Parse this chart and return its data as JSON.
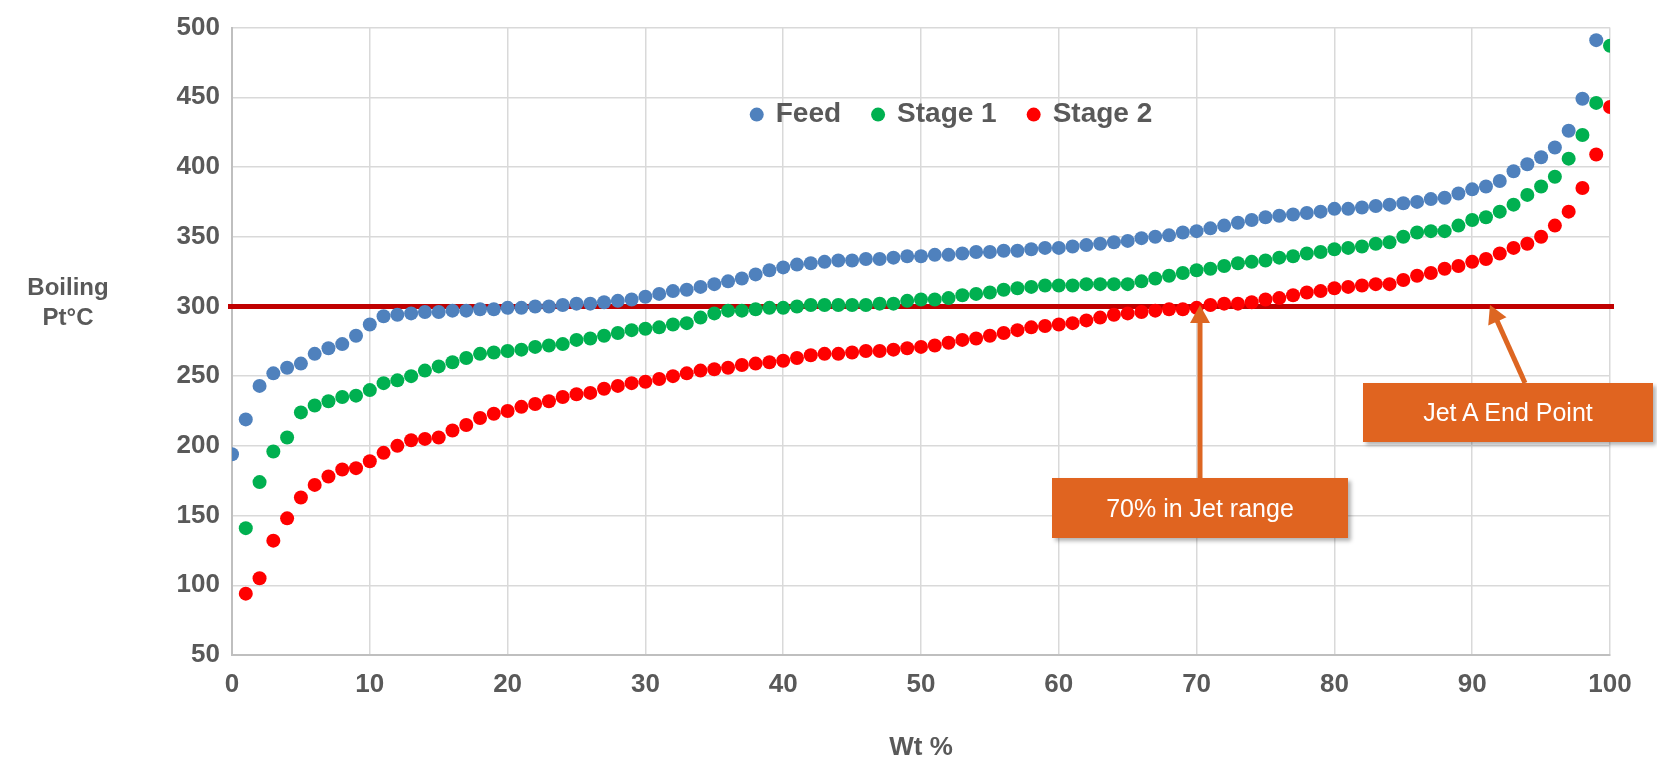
{
  "chart_data": {
    "type": "scatter",
    "xlabel": "Wt %",
    "ylabel": "Boiling Pt°C",
    "xlim": [
      0,
      100
    ],
    "xticks": [
      0,
      10,
      20,
      30,
      40,
      50,
      60,
      70,
      80,
      90,
      100
    ],
    "ylim": [
      50,
      500
    ],
    "yticks": [
      50,
      100,
      150,
      200,
      250,
      300,
      350,
      400,
      450,
      500
    ],
    "grid": true,
    "legend": "top",
    "marker": "circle",
    "series": [
      {
        "name": "Feed",
        "color": "#4f81bd",
        "x": [
          0,
          1,
          2,
          3,
          4,
          5,
          6,
          7,
          8,
          9,
          10,
          11,
          12,
          13,
          14,
          15,
          16,
          17,
          18,
          19,
          20,
          21,
          22,
          23,
          24,
          25,
          26,
          27,
          28,
          29,
          30,
          31,
          32,
          33,
          34,
          35,
          36,
          37,
          38,
          39,
          40,
          41,
          42,
          43,
          44,
          45,
          46,
          47,
          48,
          49,
          50,
          51,
          52,
          53,
          54,
          55,
          56,
          57,
          58,
          59,
          60,
          61,
          62,
          63,
          64,
          65,
          66,
          67,
          68,
          69,
          70,
          71,
          72,
          73,
          74,
          75,
          76,
          77,
          78,
          79,
          80,
          81,
          82,
          83,
          84,
          85,
          86,
          87,
          88,
          89,
          90,
          91,
          92,
          93,
          94,
          95,
          96,
          97,
          98,
          99
        ],
        "values": [
          194,
          219,
          243,
          252,
          256,
          259,
          266,
          270,
          273,
          279,
          287,
          293,
          294,
          295,
          296,
          296,
          297,
          297,
          298,
          298,
          299,
          299,
          300,
          300,
          301,
          302,
          302,
          303,
          304,
          305,
          307,
          309,
          311,
          312,
          314,
          316,
          318,
          320,
          323,
          326,
          328,
          330,
          331,
          332,
          333,
          333,
          334,
          334,
          335,
          336,
          336,
          337,
          337,
          338,
          339,
          339,
          340,
          340,
          341,
          342,
          342,
          343,
          344,
          345,
          346,
          347,
          349,
          350,
          351,
          353,
          354,
          356,
          358,
          360,
          362,
          364,
          365,
          366,
          367,
          368,
          370,
          370,
          371,
          372,
          373,
          374,
          375,
          377,
          378,
          381,
          384,
          386,
          390,
          397,
          402,
          407,
          414,
          426,
          449,
          491
        ]
      },
      {
        "name": "Stage 1",
        "color": "#00b050",
        "x": [
          1,
          2,
          3,
          4,
          5,
          6,
          7,
          8,
          9,
          10,
          11,
          12,
          13,
          14,
          15,
          16,
          17,
          18,
          19,
          20,
          21,
          22,
          23,
          24,
          25,
          26,
          27,
          28,
          29,
          30,
          31,
          32,
          33,
          34,
          35,
          36,
          37,
          38,
          39,
          40,
          41,
          42,
          43,
          44,
          45,
          46,
          47,
          48,
          49,
          50,
          51,
          52,
          53,
          54,
          55,
          56,
          57,
          58,
          59,
          60,
          61,
          62,
          63,
          64,
          65,
          66,
          67,
          68,
          69,
          70,
          71,
          72,
          73,
          74,
          75,
          76,
          77,
          78,
          79,
          80,
          81,
          82,
          83,
          84,
          85,
          86,
          87,
          88,
          89,
          90,
          91,
          92,
          93,
          94,
          95,
          96,
          97,
          98,
          99,
          100
        ],
        "values": [
          141,
          174,
          196,
          206,
          224,
          229,
          232,
          235,
          236,
          240,
          245,
          247,
          250,
          254,
          257,
          260,
          263,
          266,
          267,
          268,
          269,
          271,
          272,
          273,
          276,
          277,
          279,
          281,
          283,
          284,
          285,
          287,
          288,
          292,
          295,
          297,
          297,
          298,
          299,
          299,
          300,
          301,
          301,
          301,
          301,
          301,
          302,
          302,
          304,
          305,
          305,
          306,
          308,
          309,
          310,
          312,
          313,
          314,
          315,
          315,
          315,
          316,
          316,
          316,
          316,
          318,
          320,
          322,
          324,
          326,
          327,
          329,
          331,
          332,
          333,
          335,
          336,
          338,
          339,
          341,
          342,
          343,
          345,
          346,
          350,
          353,
          354,
          354,
          358,
          362,
          364,
          368,
          373,
          380,
          386,
          393,
          406,
          423,
          446,
          487
        ]
      },
      {
        "name": "Stage 2",
        "color": "#ff0000",
        "x": [
          1,
          2,
          3,
          4,
          5,
          6,
          7,
          8,
          9,
          10,
          11,
          12,
          13,
          14,
          15,
          16,
          17,
          18,
          19,
          20,
          21,
          22,
          23,
          24,
          25,
          26,
          27,
          28,
          29,
          30,
          31,
          32,
          33,
          34,
          35,
          36,
          37,
          38,
          39,
          40,
          41,
          42,
          43,
          44,
          45,
          46,
          47,
          48,
          49,
          50,
          51,
          52,
          53,
          54,
          55,
          56,
          57,
          58,
          59,
          60,
          61,
          62,
          63,
          64,
          65,
          66,
          67,
          68,
          69,
          70,
          71,
          72,
          73,
          74,
          75,
          76,
          77,
          78,
          79,
          80,
          81,
          82,
          83,
          84,
          85,
          86,
          87,
          88,
          89,
          90,
          91,
          92,
          93,
          94,
          95,
          96,
          97,
          98,
          99,
          100
        ],
        "values": [
          94,
          105,
          132,
          148,
          163,
          172,
          178,
          183,
          184,
          189,
          195,
          200,
          204,
          205,
          206,
          211,
          215,
          220,
          223,
          225,
          228,
          230,
          232,
          235,
          237,
          238,
          241,
          243,
          245,
          246,
          248,
          250,
          252,
          254,
          255,
          256,
          258,
          259,
          260,
          261,
          263,
          265,
          266,
          266,
          267,
          268,
          268,
          269,
          270,
          271,
          272,
          274,
          276,
          277,
          279,
          281,
          283,
          285,
          286,
          287,
          288,
          290,
          292,
          294,
          295,
          296,
          297,
          298,
          298,
          299,
          301,
          302,
          302,
          303,
          305,
          306,
          308,
          310,
          311,
          313,
          314,
          315,
          316,
          316,
          319,
          322,
          324,
          327,
          329,
          332,
          334,
          338,
          342,
          345,
          350,
          358,
          368,
          385,
          409,
          443
        ]
      }
    ],
    "ref_lines": [
      {
        "axis": "y",
        "value": 300,
        "color": "#c00000"
      }
    ],
    "annotations": [
      "70% in Jet range",
      "Jet A End Point"
    ]
  }
}
